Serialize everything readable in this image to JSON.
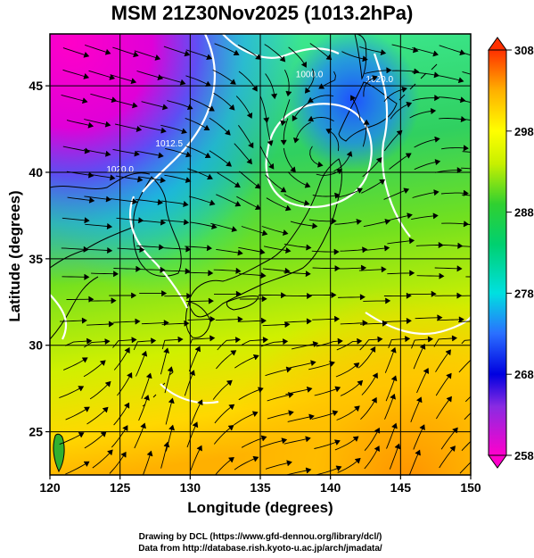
{
  "title": "MSM 21Z30Nov2025 (1013.2hPa)",
  "x_axis": {
    "label": "Longitude (degrees)",
    "ticks": [
      120,
      125,
      130,
      135,
      140,
      145,
      150
    ],
    "range": [
      120,
      150
    ]
  },
  "y_axis": {
    "label": "Latitude  (degrees)",
    "ticks": [
      25,
      30,
      35,
      40,
      45
    ],
    "range": [
      22.5,
      48
    ]
  },
  "colorbar": {
    "ticks": [
      258,
      268,
      278,
      288,
      298,
      308
    ],
    "range": [
      258,
      308
    ]
  },
  "contour_labels": [
    {
      "text": "1000.0",
      "lon": 138.5,
      "lat": 45.5
    },
    {
      "text": "1012.5",
      "lon": 128.5,
      "lat": 41.5
    },
    {
      "text": "1020.0",
      "lon": 125.0,
      "lat": 40.0
    },
    {
      "text": "1020.0",
      "lon": 143.5,
      "lat": 45.2
    }
  ],
  "credits": [
    "Drawing by DCL (https://www.gfd-dennou.org/library/dcl/)",
    "Data from http://database.rish.kyoto-u.ac.jp/arch/jmadata/"
  ]
}
